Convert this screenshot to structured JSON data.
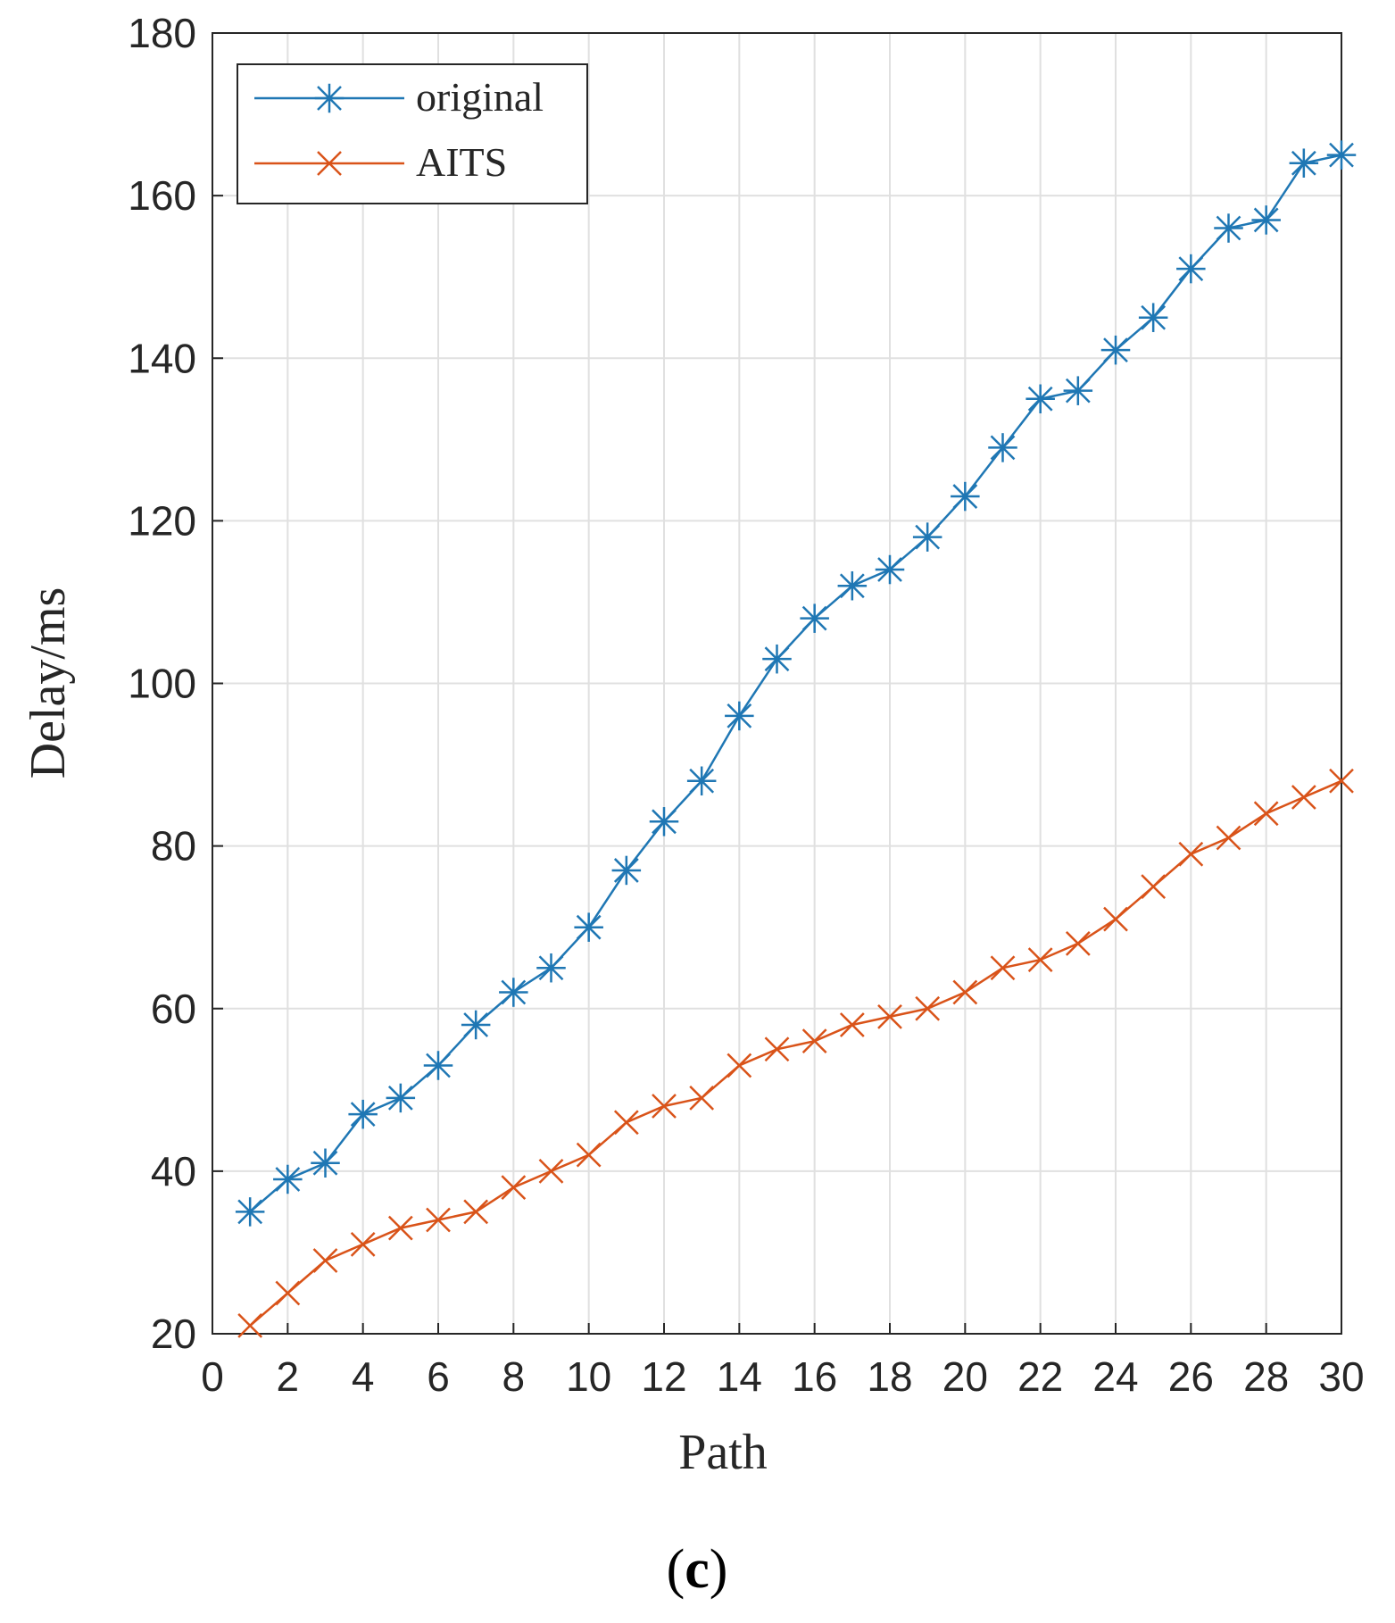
{
  "chart_data": {
    "type": "line",
    "title": "",
    "xlabel": "Path",
    "ylabel": "Delay/ms",
    "xlim": [
      0,
      30
    ],
    "ylim": [
      20,
      180
    ],
    "xticks": [
      "0",
      "2",
      "4",
      "6",
      "8",
      "10",
      "12",
      "14",
      "16",
      "18",
      "20",
      "22",
      "24",
      "26",
      "28",
      "30"
    ],
    "yticks": [
      "20",
      "40",
      "60",
      "80",
      "100",
      "120",
      "140",
      "160",
      "180"
    ],
    "grid": true,
    "legend_position": "top-left",
    "x": [
      1,
      2,
      3,
      4,
      5,
      6,
      7,
      8,
      9,
      10,
      11,
      12,
      13,
      14,
      15,
      16,
      17,
      18,
      19,
      20,
      21,
      22,
      23,
      24,
      25,
      26,
      27,
      28,
      29,
      30
    ],
    "series": [
      {
        "name": "original",
        "marker": "asterisk",
        "color": "#1f77b4",
        "values": [
          35,
          39,
          41,
          47,
          49,
          53,
          58,
          62,
          65,
          70,
          77,
          83,
          88,
          96,
          103,
          108,
          112,
          114,
          118,
          123,
          129,
          135,
          136,
          141,
          145,
          151,
          156,
          157,
          164,
          165
        ]
      },
      {
        "name": "AITS",
        "marker": "cross",
        "color": "#d95319",
        "values": [
          21,
          25,
          29,
          31,
          33,
          34,
          35,
          38,
          40,
          42,
          46,
          48,
          49,
          53,
          55,
          56,
          58,
          59,
          60,
          62,
          65,
          66,
          68,
          71,
          75,
          79,
          81,
          84,
          86,
          88
        ]
      }
    ]
  },
  "caption": {
    "open_paren": "(",
    "letter": "c",
    "close_paren": ")"
  }
}
